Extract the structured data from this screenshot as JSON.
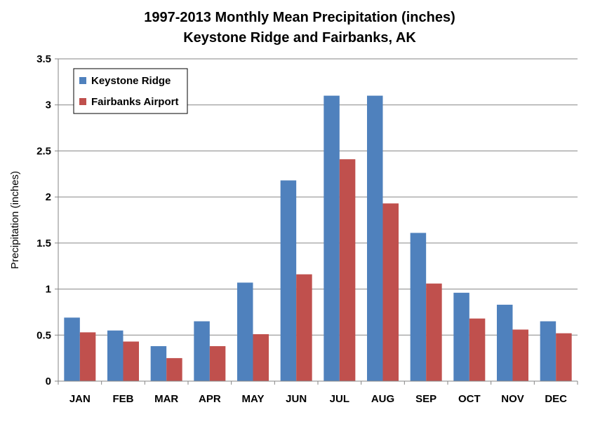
{
  "chart_data": {
    "type": "bar",
    "title_lines": [
      "1997-2013  Monthly Mean Precipitation (inches)",
      "Keystone Ridge and Fairbanks, AK"
    ],
    "xlabel": "",
    "ylabel": "Precipitation (inches)",
    "ylim": [
      0,
      3.5
    ],
    "yticks": [
      "0",
      "0.5",
      "1",
      "1.5",
      "2",
      "2.5",
      "3",
      "3.5"
    ],
    "ytick_values": [
      0,
      0.5,
      1,
      1.5,
      2,
      2.5,
      3,
      3.5
    ],
    "grid": true,
    "legend_position": "top-left",
    "categories": [
      "JAN",
      "FEB",
      "MAR",
      "APR",
      "MAY",
      "JUN",
      "JUL",
      "AUG",
      "SEP",
      "OCT",
      "NOV",
      "DEC"
    ],
    "series": [
      {
        "name": "Keystone Ridge",
        "color": "#4f81bd",
        "values": [
          0.69,
          0.55,
          0.38,
          0.65,
          1.07,
          2.18,
          3.1,
          3.1,
          1.61,
          0.96,
          0.83,
          0.65
        ]
      },
      {
        "name": "Fairbanks Airport",
        "color": "#c0504d",
        "values": [
          0.53,
          0.43,
          0.25,
          0.38,
          0.51,
          1.16,
          2.41,
          1.93,
          1.06,
          0.68,
          0.56,
          0.52
        ]
      }
    ]
  }
}
